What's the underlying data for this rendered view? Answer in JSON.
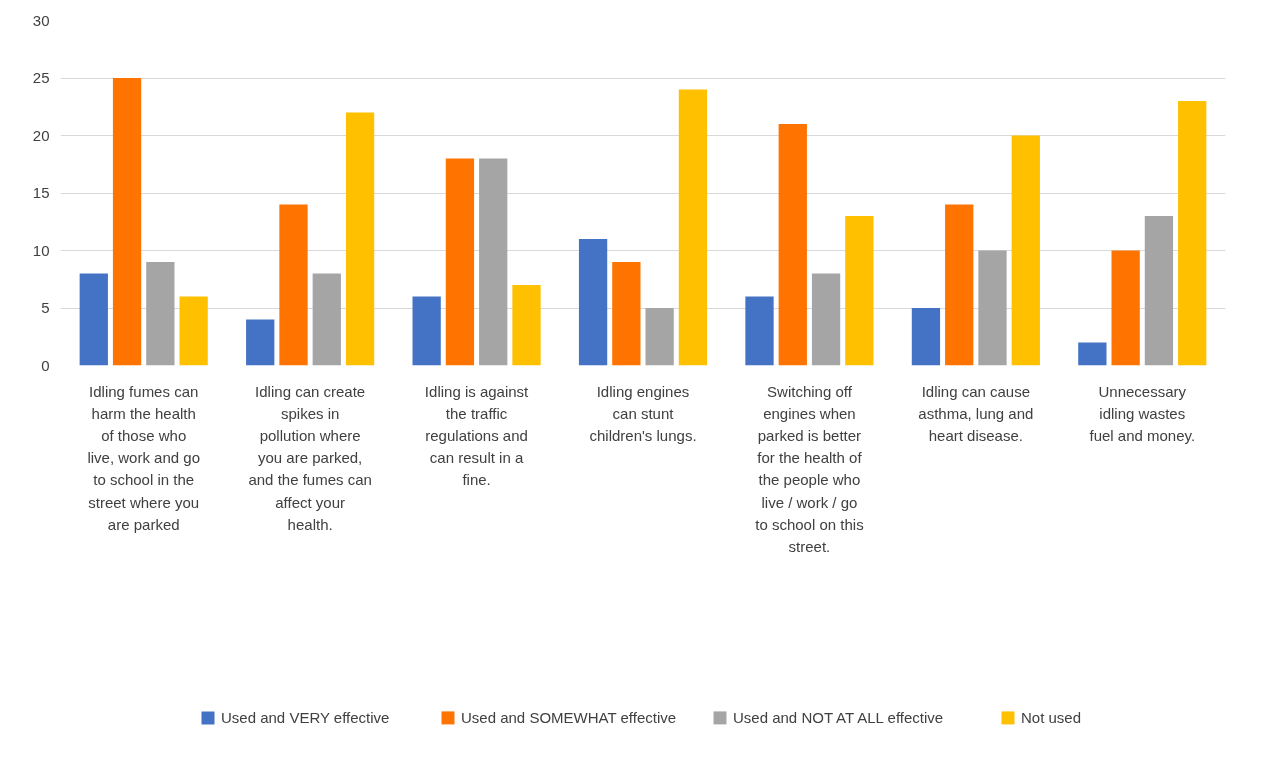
{
  "chart_data": {
    "type": "bar",
    "categories": [
      "Idling fumes can harm the health of those who live, work and go to school in the street where you are parked",
      "Idling can create spikes in pollution where you are parked, and the fumes can affect your health.",
      "Idling is against the traffic regulations and can result in a fine.",
      "Idling engines can stunt children's lungs.",
      "Switching off engines when parked is better for the health of the people who live / work / go to school on this street.",
      "Idling can cause asthma, lung and heart disease.",
      "Unnecessary idling wastes fuel and money."
    ],
    "series": [
      {
        "name": "Used and VERY effective",
        "color": "#4472c4",
        "values": [
          8,
          4,
          6,
          11,
          6,
          5,
          2
        ]
      },
      {
        "name": "Used and SOMEWHAT effective",
        "color": "#ff7300",
        "values": [
          25,
          14,
          18,
          9,
          21,
          14,
          10
        ]
      },
      {
        "name": "Used and NOT AT ALL effective",
        "color": "#a5a5a5",
        "values": [
          9,
          8,
          18,
          5,
          8,
          10,
          13
        ]
      },
      {
        "name": "Not used",
        "color": "#ffc000",
        "values": [
          6,
          22,
          7,
          24,
          13,
          20,
          23
        ]
      }
    ],
    "ylim": [
      0,
      30
    ],
    "yticks": [
      0,
      5,
      10,
      15,
      20,
      25,
      30
    ],
    "grid": "y",
    "legend": "bottom"
  }
}
